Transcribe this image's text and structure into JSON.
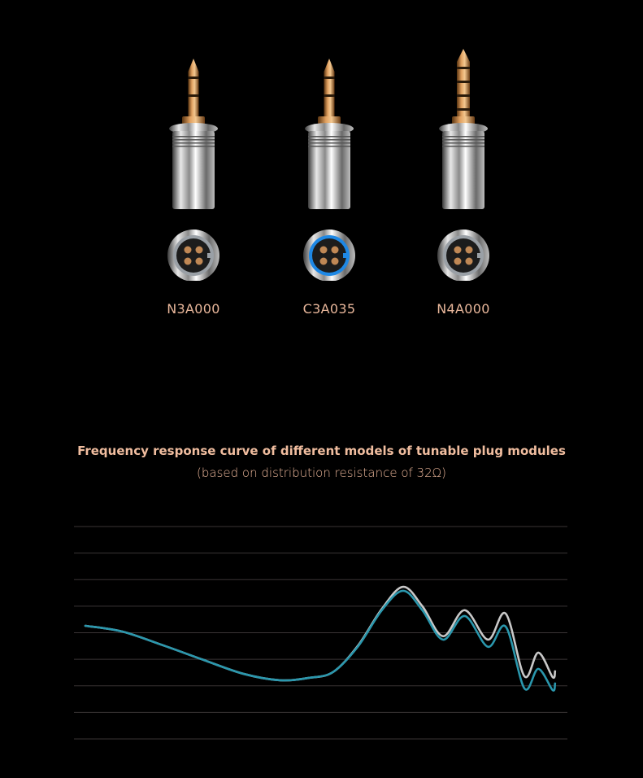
{
  "modules": [
    {
      "label": "N3A000",
      "plug_type": "3.5mm",
      "ring_color": "#9aa0a6"
    },
    {
      "label": "C3A035",
      "plug_type": "3.5mm",
      "ring_color": "#1e88e5"
    },
    {
      "label": "N4A000",
      "plug_type": "4.4mm",
      "ring_color": "#9aa0a6"
    }
  ],
  "chart_title": "Frequency response curve of different models of tunable plug modules",
  "chart_subtitle": "(based on distribution resistance of 32Ω)",
  "chart_data": {
    "type": "line",
    "title": "Frequency response curve of different models of tunable plug modules",
    "subtitle": "(based on distribution resistance of 32Ω)",
    "xlabel": "",
    "ylabel": "",
    "xlim": [
      0,
      100
    ],
    "ylim": [
      0,
      8
    ],
    "grid": "horizontal",
    "gridlines": [
      0,
      1,
      2,
      3,
      4,
      5,
      6,
      7,
      8
    ],
    "series": [
      {
        "color": "#c8c8c8",
        "points": [
          [
            2.3,
            4.26
          ],
          [
            9.7,
            4.05
          ],
          [
            18,
            3.53
          ],
          [
            26.2,
            2.98
          ],
          [
            34.4,
            2.45
          ],
          [
            41.8,
            2.21
          ],
          [
            47.6,
            2.3
          ],
          [
            52.5,
            2.52
          ],
          [
            57.5,
            3.5
          ],
          [
            62.4,
            4.9
          ],
          [
            66.7,
            5.73
          ],
          [
            70.6,
            5.0
          ],
          [
            74.8,
            3.87
          ],
          [
            79.2,
            4.85
          ],
          [
            83.9,
            3.74
          ],
          [
            87.5,
            4.72
          ],
          [
            91.3,
            2.36
          ],
          [
            94.1,
            3.25
          ],
          [
            97.0,
            2.33
          ],
          [
            97.5,
            2.55
          ]
        ]
      },
      {
        "color": "#2a97ad",
        "points": [
          [
            2.3,
            4.26
          ],
          [
            9.7,
            4.05
          ],
          [
            18,
            3.53
          ],
          [
            26.2,
            2.98
          ],
          [
            34.4,
            2.45
          ],
          [
            41.8,
            2.21
          ],
          [
            47.6,
            2.3
          ],
          [
            52.5,
            2.52
          ],
          [
            57.5,
            3.47
          ],
          [
            62.4,
            4.85
          ],
          [
            66.7,
            5.58
          ],
          [
            70.6,
            4.85
          ],
          [
            74.8,
            3.74
          ],
          [
            79.2,
            4.63
          ],
          [
            83.9,
            3.47
          ],
          [
            87.5,
            4.23
          ],
          [
            91.3,
            1.9
          ],
          [
            94.1,
            2.64
          ],
          [
            97.0,
            1.84
          ],
          [
            97.5,
            2.09
          ]
        ]
      }
    ],
    "grid_color": "#3a3435"
  }
}
